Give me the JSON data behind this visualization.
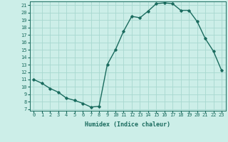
{
  "x": [
    0,
    1,
    2,
    3,
    4,
    5,
    6,
    7,
    8,
    9,
    10,
    11,
    12,
    13,
    14,
    15,
    16,
    17,
    18,
    19,
    20,
    21,
    22,
    23
  ],
  "y": [
    11,
    10.5,
    9.8,
    9.3,
    8.5,
    8.2,
    7.8,
    7.3,
    7.4,
    13.0,
    15.0,
    17.5,
    19.5,
    19.3,
    20.2,
    21.2,
    21.3,
    21.2,
    20.3,
    20.3,
    18.8,
    16.5,
    14.8,
    12.2
  ],
  "xlim_min": -0.5,
  "xlim_max": 23.5,
  "ylim_min": 6.8,
  "ylim_max": 21.5,
  "xticks": [
    0,
    1,
    2,
    3,
    4,
    5,
    6,
    7,
    8,
    9,
    10,
    11,
    12,
    13,
    14,
    15,
    16,
    17,
    18,
    19,
    20,
    21,
    22,
    23
  ],
  "yticks": [
    7,
    8,
    9,
    10,
    11,
    12,
    13,
    14,
    15,
    16,
    17,
    18,
    19,
    20,
    21
  ],
  "xlabel": "Humidex (Indice chaleur)",
  "line_color": "#1a6b5e",
  "marker": "D",
  "marker_size": 1.8,
  "bg_color": "#cceee8",
  "grid_color": "#a8d8d0",
  "label_color": "#1a6b5e",
  "tick_color": "#1a6b5e",
  "line_width": 1.0,
  "tick_fontsize": 5.0,
  "xlabel_fontsize": 6.0
}
